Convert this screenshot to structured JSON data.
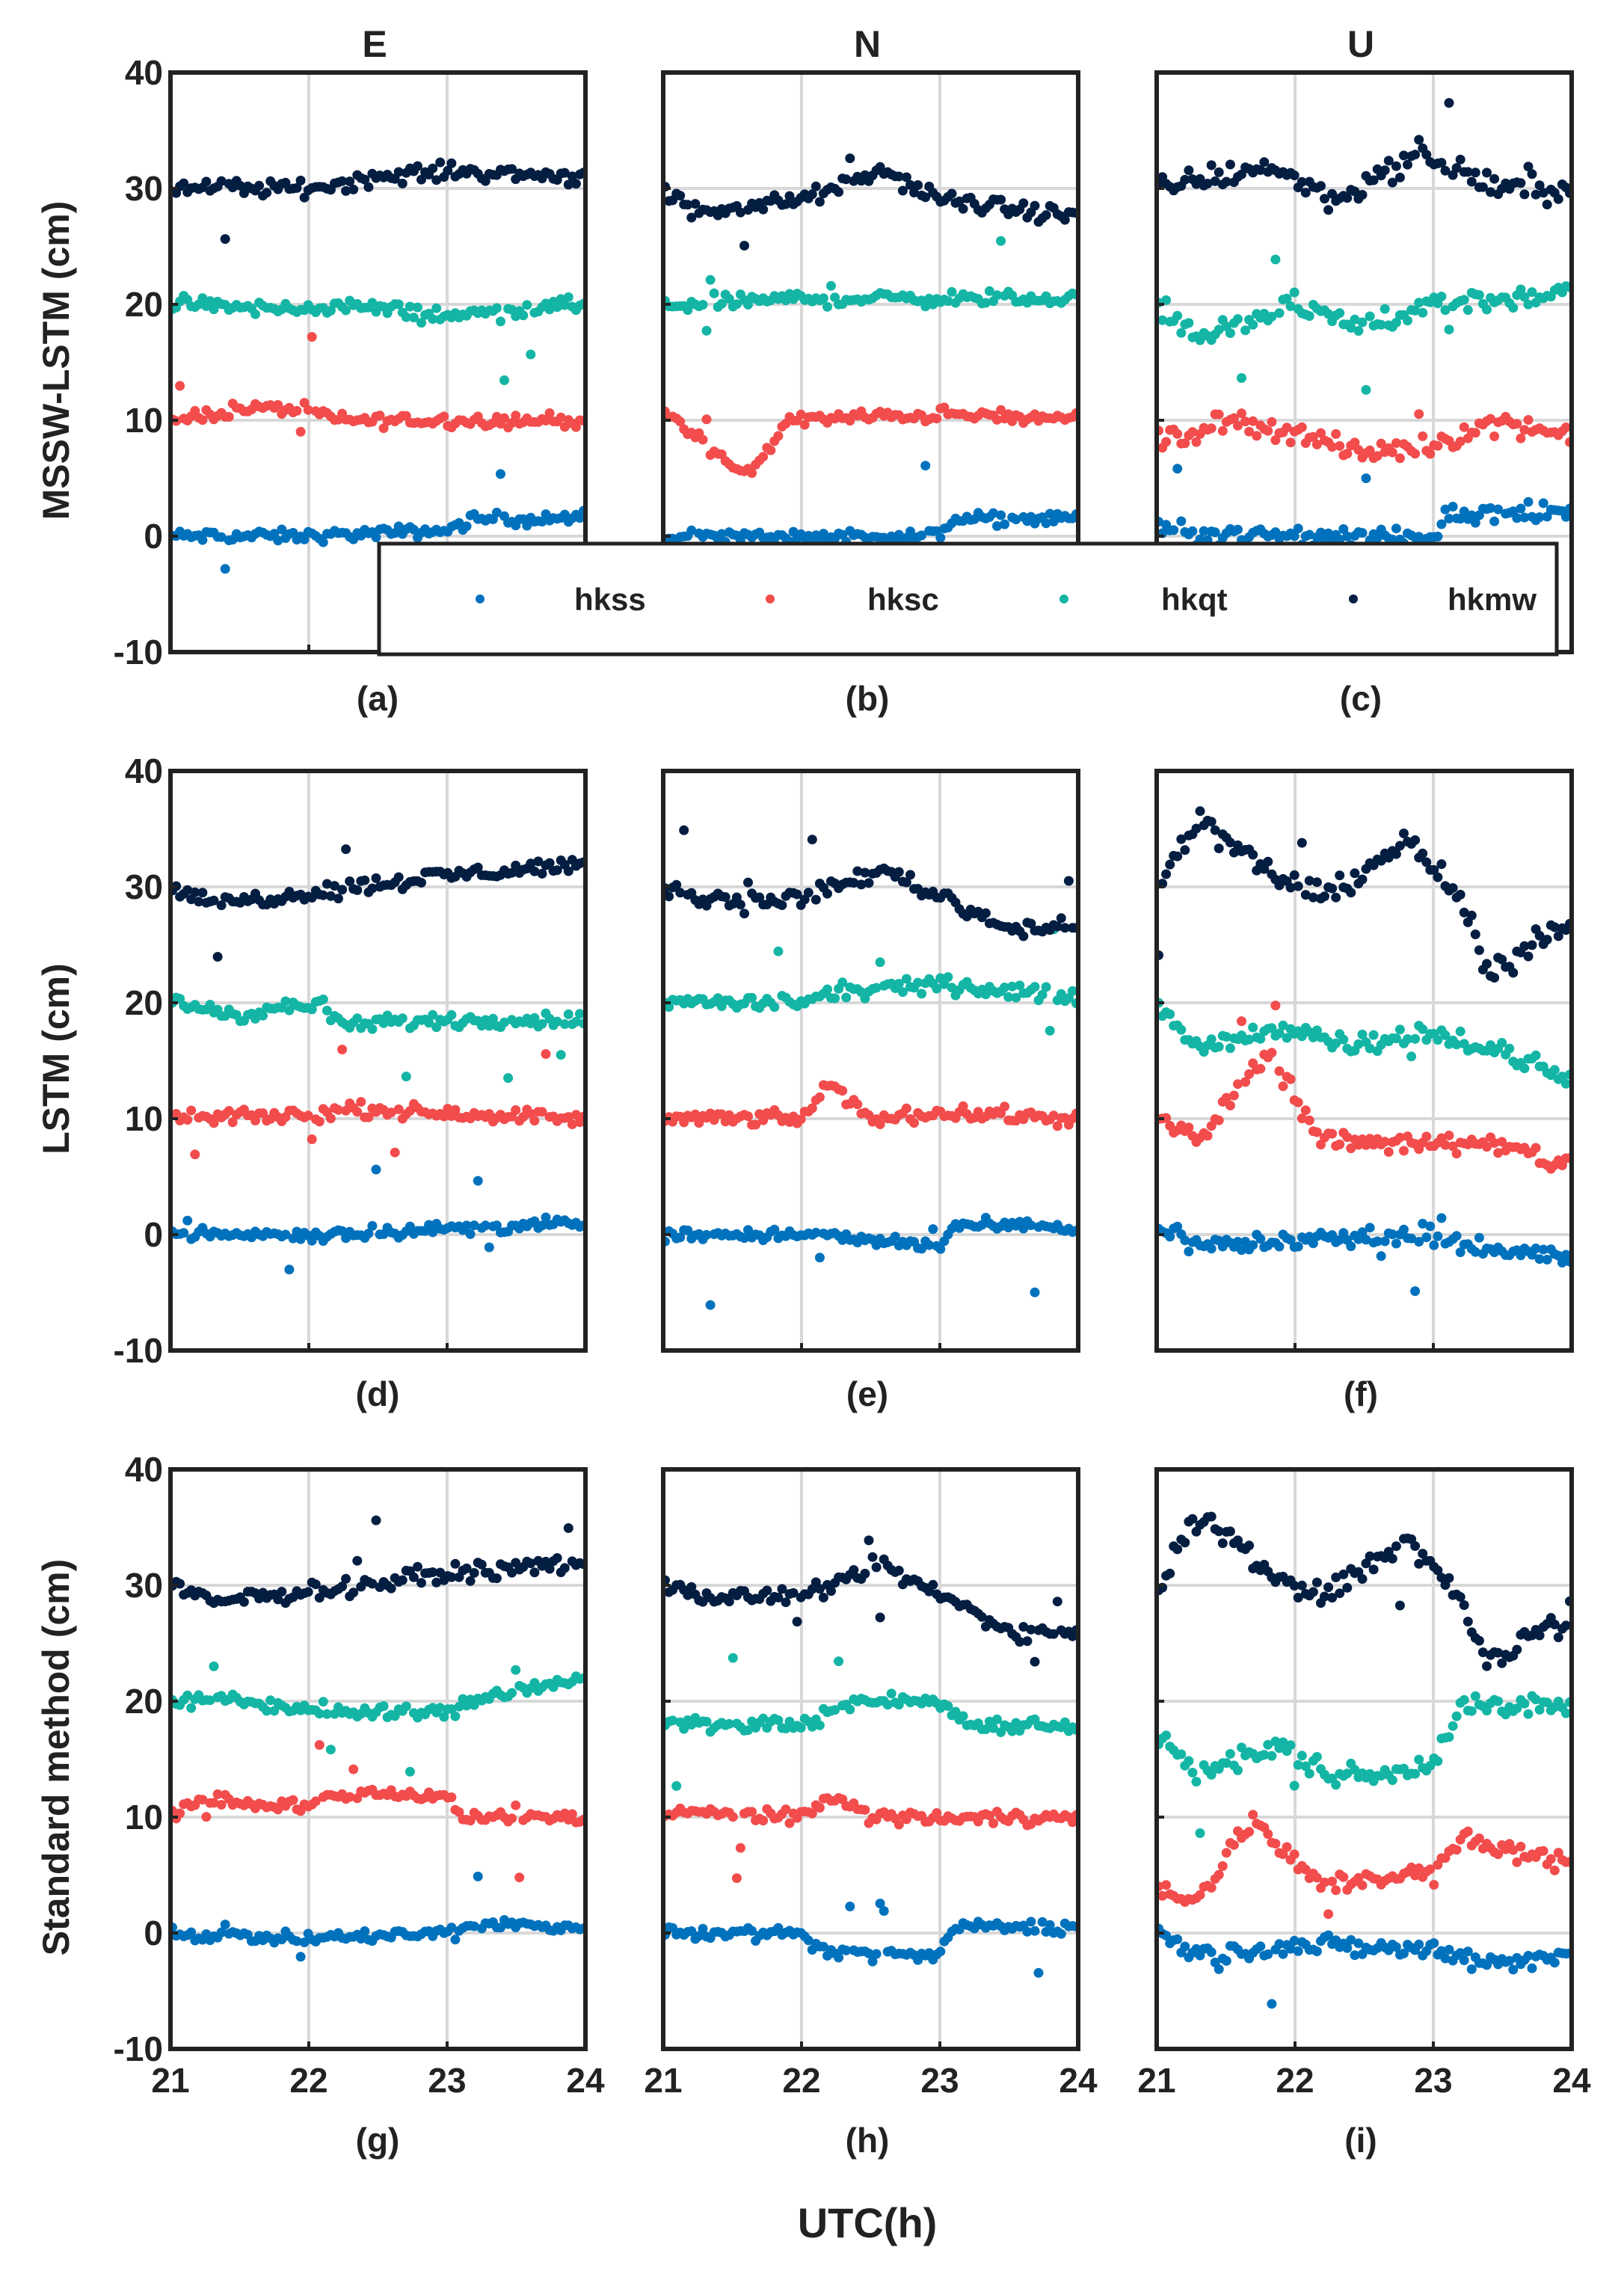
{
  "figure": {
    "xlabel": "UTC(h)",
    "column_titles": [
      "E",
      "N",
      "U"
    ],
    "row_ylabels": [
      "MSSW-LSTM (cm)",
      "LSTM (cm)",
      "Standard method (cm)"
    ],
    "panel_labels": [
      "(a)",
      "(b)",
      "(c)",
      "(d)",
      "(e)",
      "(f)",
      "(g)",
      "(h)",
      "(i)"
    ]
  },
  "legend": {
    "location": "inside row 1, spanning panels (a)-(c), bottom",
    "entries": [
      {
        "name": "hkss",
        "color": "#0072BD"
      },
      {
        "name": "hksc",
        "color": "#F24C4C"
      },
      {
        "name": "hkqt",
        "color": "#14B5A5"
      },
      {
        "name": "hkmw",
        "color": "#041E42"
      }
    ]
  },
  "chart_data": {
    "type": "scatter",
    "note": "Per-station displacement time series, each station offset by 0/10/20/30 cm; values approximate, read from the figure.",
    "xlim": [
      21,
      24
    ],
    "ylim": [
      -10,
      40
    ],
    "xticks": [
      21,
      22,
      23,
      24
    ],
    "yticks": [
      -10,
      0,
      10,
      20,
      30,
      40
    ],
    "xtick_labels": [
      "21",
      "22",
      "23",
      "24"
    ],
    "ytick_labels": [
      "-10",
      "0",
      "10",
      "20",
      "30",
      "40"
    ],
    "grid": true,
    "series_names": [
      "hkss",
      "hksc",
      "hkqt",
      "hkmw"
    ],
    "series_offsets": [
      0,
      10,
      20,
      30
    ],
    "panels": [
      {
        "id": "a",
        "component": "E",
        "method": "MSSW-LSTM",
        "knots": [
          [
            [
              21,
              0
            ],
            [
              22,
              0
            ],
            [
              23,
              0.5
            ],
            [
              23.2,
              1.5
            ],
            [
              24,
              1.5
            ]
          ],
          [
            [
              21,
              10
            ],
            [
              21.5,
              11
            ],
            [
              22,
              11
            ],
            [
              22.2,
              10
            ],
            [
              24,
              10
            ]
          ],
          [
            [
              21,
              20
            ],
            [
              22,
              19.5
            ],
            [
              22.2,
              20
            ],
            [
              23,
              19
            ],
            [
              24,
              20
            ]
          ],
          [
            [
              21,
              30
            ],
            [
              22,
              30
            ],
            [
              22.5,
              31
            ],
            [
              23,
              31.5
            ],
            [
              24,
              31
            ]
          ]
        ]
      },
      {
        "id": "b",
        "component": "N",
        "method": "MSSW-LSTM",
        "knots": [
          [
            [
              21,
              0
            ],
            [
              22,
              0
            ],
            [
              23,
              0
            ],
            [
              23.1,
              1.5
            ],
            [
              24,
              1.5
            ]
          ],
          [
            [
              21,
              11
            ],
            [
              21.6,
              5
            ],
            [
              21.9,
              10
            ],
            [
              23,
              10.5
            ],
            [
              24,
              10
            ]
          ],
          [
            [
              21,
              20
            ],
            [
              22,
              20.5
            ],
            [
              23,
              20.5
            ],
            [
              24,
              20.5
            ]
          ],
          [
            [
              21,
              30
            ],
            [
              21.2,
              28
            ],
            [
              22,
              29
            ],
            [
              22.6,
              31.5
            ],
            [
              23,
              29
            ],
            [
              24,
              27.5
            ]
          ]
        ]
      },
      {
        "id": "c",
        "component": "U",
        "method": "MSSW-LSTM",
        "knots": [
          [
            [
              21,
              1
            ],
            [
              21.3,
              0
            ],
            [
              23,
              0
            ],
            [
              23.1,
              2
            ],
            [
              24,
              2
            ]
          ],
          [
            [
              21,
              8
            ],
            [
              21.5,
              10
            ],
            [
              22,
              9
            ],
            [
              22.5,
              7
            ],
            [
              23,
              8
            ],
            [
              23.5,
              10
            ],
            [
              24,
              8.5
            ]
          ],
          [
            [
              21,
              20
            ],
            [
              21.3,
              17
            ],
            [
              22,
              20
            ],
            [
              22.5,
              18
            ],
            [
              23,
              20
            ],
            [
              24,
              21
            ]
          ],
          [
            [
              21,
              30
            ],
            [
              21.8,
              32
            ],
            [
              22.3,
              29
            ],
            [
              22.9,
              33
            ],
            [
              23.5,
              30
            ],
            [
              24,
              30
            ]
          ]
        ]
      },
      {
        "id": "d",
        "component": "E",
        "method": "LSTM",
        "knots": [
          [
            [
              21,
              0
            ],
            [
              22,
              0
            ],
            [
              23,
              0.5
            ],
            [
              24,
              1
            ]
          ],
          [
            [
              21,
              10
            ],
            [
              22,
              10.3
            ],
            [
              22.3,
              10.8
            ],
            [
              23,
              10.5
            ],
            [
              24,
              10
            ]
          ],
          [
            [
              21,
              20
            ],
            [
              21.5,
              19
            ],
            [
              22.1,
              20
            ],
            [
              22.2,
              18
            ],
            [
              23,
              18.5
            ],
            [
              24,
              18.5
            ]
          ],
          [
            [
              21,
              30
            ],
            [
              21.3,
              28.5
            ],
            [
              22,
              29.5
            ],
            [
              23,
              31
            ],
            [
              24,
              32
            ]
          ]
        ]
      },
      {
        "id": "e",
        "component": "N",
        "method": "LSTM",
        "knots": [
          [
            [
              21,
              0
            ],
            [
              22,
              0
            ],
            [
              23,
              -1
            ],
            [
              23.1,
              0.8
            ],
            [
              24,
              0.5
            ]
          ],
          [
            [
              21,
              10
            ],
            [
              22,
              10
            ],
            [
              22.2,
              13
            ],
            [
              22.5,
              10
            ],
            [
              23,
              10.5
            ],
            [
              24,
              10
            ]
          ],
          [
            [
              21,
              20
            ],
            [
              22,
              20
            ],
            [
              22.3,
              21
            ],
            [
              23,
              21.5
            ],
            [
              24,
              20.5
            ]
          ],
          [
            [
              21,
              30
            ],
            [
              21.3,
              29
            ],
            [
              22,
              29
            ],
            [
              22.6,
              31.5
            ],
            [
              23.2,
              28
            ],
            [
              23.5,
              26.5
            ],
            [
              24,
              26.5
            ]
          ]
        ]
      },
      {
        "id": "f",
        "component": "U",
        "method": "LSTM",
        "knots": [
          [
            [
              21,
              1
            ],
            [
              21.3,
              -1
            ],
            [
              22,
              -0.5
            ],
            [
              23,
              0
            ],
            [
              23.5,
              -1.5
            ],
            [
              24,
              -2
            ]
          ],
          [
            [
              21,
              10
            ],
            [
              21.3,
              8
            ],
            [
              21.8,
              16
            ],
            [
              22.2,
              8
            ],
            [
              23,
              8
            ],
            [
              23.5,
              7.5
            ],
            [
              24,
              6
            ]
          ],
          [
            [
              21,
              20
            ],
            [
              21.3,
              16
            ],
            [
              22,
              18
            ],
            [
              22.3,
              16.5
            ],
            [
              23,
              17.5
            ],
            [
              24,
              13.5
            ]
          ],
          [
            [
              21,
              30
            ],
            [
              21.3,
              36
            ],
            [
              21.7,
              32
            ],
            [
              22.2,
              29
            ],
            [
              22.8,
              34
            ],
            [
              23.2,
              29
            ],
            [
              23.4,
              22
            ],
            [
              23.8,
              26
            ],
            [
              24,
              27
            ]
          ]
        ]
      },
      {
        "id": "g",
        "component": "E",
        "method": "Standard method",
        "knots": [
          [
            [
              21,
              0
            ],
            [
              22,
              -0.5
            ],
            [
              23,
              0
            ],
            [
              23.2,
              0.8
            ],
            [
              24,
              0.5
            ]
          ],
          [
            [
              21,
              10
            ],
            [
              21.2,
              11.5
            ],
            [
              22,
              11
            ],
            [
              22.3,
              12
            ],
            [
              23,
              12
            ],
            [
              23.1,
              10
            ],
            [
              24,
              10
            ]
          ],
          [
            [
              21,
              20
            ],
            [
              21.5,
              20
            ],
            [
              22.2,
              19
            ],
            [
              23,
              19
            ],
            [
              23.3,
              20.5
            ],
            [
              24,
              22
            ]
          ],
          [
            [
              21,
              30
            ],
            [
              21.3,
              28.5
            ],
            [
              22,
              29.5
            ],
            [
              23,
              31
            ],
            [
              24,
              32
            ]
          ]
        ]
      },
      {
        "id": "h",
        "component": "N",
        "method": "Standard method",
        "knots": [
          [
            [
              21,
              0
            ],
            [
              22,
              0
            ],
            [
              22.1,
              -1.5
            ],
            [
              23,
              -2
            ],
            [
              23.1,
              0.5
            ],
            [
              24,
              0.5
            ]
          ],
          [
            [
              21,
              10.5
            ],
            [
              22,
              10
            ],
            [
              22.2,
              12
            ],
            [
              22.5,
              10
            ],
            [
              23,
              10
            ],
            [
              24,
              10
            ]
          ],
          [
            [
              21,
              18
            ],
            [
              22,
              18
            ],
            [
              22.4,
              20
            ],
            [
              23,
              20
            ],
            [
              23.2,
              18
            ],
            [
              24,
              18
            ]
          ],
          [
            [
              21,
              30
            ],
            [
              21.3,
              29
            ],
            [
              22,
              29
            ],
            [
              22.6,
              31.5
            ],
            [
              23.2,
              28
            ],
            [
              23.5,
              26
            ],
            [
              24,
              26
            ]
          ]
        ]
      },
      {
        "id": "i",
        "component": "U",
        "method": "Standard method",
        "knots": [
          [
            [
              21,
              0
            ],
            [
              21.3,
              -2
            ],
            [
              22,
              -1
            ],
            [
              23,
              -1.5
            ],
            [
              23.5,
              -2.5
            ],
            [
              24,
              -2
            ]
          ],
          [
            [
              21,
              4
            ],
            [
              21.3,
              3
            ],
            [
              21.7,
              10
            ],
            [
              21.9,
              7
            ],
            [
              22.2,
              4
            ],
            [
              22.6,
              5
            ],
            [
              23,
              5
            ],
            [
              23.2,
              8
            ],
            [
              24,
              6
            ]
          ],
          [
            [
              21,
              17
            ],
            [
              21.3,
              14
            ],
            [
              21.9,
              16
            ],
            [
              22.2,
              14
            ],
            [
              22.6,
              13.5
            ],
            [
              23,
              15
            ],
            [
              23.2,
              19.5
            ],
            [
              24,
              19.5
            ]
          ],
          [
            [
              21,
              30
            ],
            [
              21.3,
              36
            ],
            [
              21.7,
              32
            ],
            [
              22.2,
              29
            ],
            [
              22.8,
              34
            ],
            [
              23.2,
              29
            ],
            [
              23.4,
              23
            ],
            [
              23.7,
              26
            ],
            [
              24,
              27
            ]
          ]
        ]
      }
    ]
  }
}
